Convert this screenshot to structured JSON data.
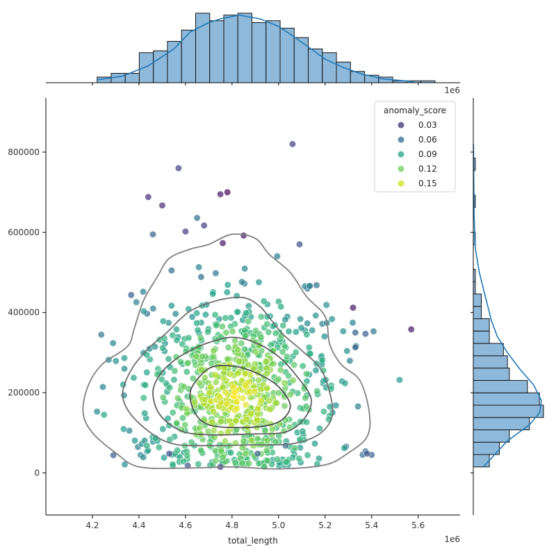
{
  "chart_data": {
    "type": "scatter",
    "title": "",
    "xlabel": "total_length",
    "ylabel": "",
    "x_offset_label": "1e6",
    "marg_offset_label": "1e6",
    "xlim": [
      4.0,
      5.78
    ],
    "ylim": [
      -105000,
      935000
    ],
    "x_unit": 1000000,
    "xticks": [
      4.2,
      4.4,
      4.6,
      4.8,
      5.0,
      5.2,
      5.4,
      5.6
    ],
    "yticks": [
      0,
      200000,
      400000,
      600000,
      800000
    ],
    "grid": false,
    "legend": {
      "title": "anomaly_score",
      "placement": "top-right",
      "entries": [
        {
          "label": "0.03",
          "color": "#3e2f73"
        },
        {
          "label": "0.06",
          "color": "#31698e"
        },
        {
          "label": "0.09",
          "color": "#21a386"
        },
        {
          "label": "0.12",
          "color": "#6ccd5a"
        },
        {
          "label": "0.15",
          "color": "#d2e21b"
        }
      ]
    },
    "colormap": "viridis",
    "score_range": [
      0.0,
      0.17
    ],
    "point_alpha": 0.7,
    "notable_points": [
      {
        "x": 5.06,
        "y": 820000,
        "score": 0.03
      },
      {
        "x": 4.57,
        "y": 760000,
        "score": 0.03
      },
      {
        "x": 4.78,
        "y": 700000,
        "score": 0.0
      },
      {
        "x": 4.75,
        "y": 695000,
        "score": 0.01
      },
      {
        "x": 4.44,
        "y": 688000,
        "score": 0.02
      },
      {
        "x": 4.5,
        "y": 667000,
        "score": 0.02
      },
      {
        "x": 4.65,
        "y": 636000,
        "score": 0.06
      },
      {
        "x": 4.68,
        "y": 617000,
        "score": 0.03
      },
      {
        "x": 4.6,
        "y": 602000,
        "score": 0.03
      },
      {
        "x": 4.46,
        "y": 595000,
        "score": 0.05
      },
      {
        "x": 4.85,
        "y": 592000,
        "score": 0.01
      },
      {
        "x": 5.09,
        "y": 570000,
        "score": 0.04
      },
      {
        "x": 4.76,
        "y": 573000,
        "score": 0.01
      },
      {
        "x": 5.32,
        "y": 412000,
        "score": 0.01
      },
      {
        "x": 5.57,
        "y": 358000,
        "score": 0.01
      },
      {
        "x": 5.52,
        "y": 232000,
        "score": 0.09
      },
      {
        "x": 5.33,
        "y": 313000,
        "score": 0.05
      },
      {
        "x": 5.33,
        "y": 350000,
        "score": 0.05
      },
      {
        "x": 4.22,
        "y": 153000,
        "score": 0.08
      },
      {
        "x": 4.29,
        "y": 44000,
        "score": 0.05
      },
      {
        "x": 4.75,
        "y": 15000,
        "score": 0.03
      },
      {
        "x": 4.61,
        "y": 18000,
        "score": 0.04
      },
      {
        "x": 5.4,
        "y": 45000,
        "score": 0.05
      },
      {
        "x": 5.38,
        "y": 48000,
        "score": 0.04
      },
      {
        "x": 4.27,
        "y": 282000,
        "score": 0.08
      },
      {
        "x": 4.25,
        "y": 145000,
        "score": 0.1
      },
      {
        "x": 4.53,
        "y": 48000,
        "score": 0.04
      },
      {
        "x": 4.91,
        "y": 48000,
        "score": 0.05
      },
      {
        "x": 5.03,
        "y": 68000,
        "score": 0.06
      }
    ],
    "contour_levels": [
      [
        [
          4.16,
          150000
        ],
        [
          4.2,
          100000
        ],
        [
          4.3,
          50000
        ],
        [
          4.4,
          15000
        ],
        [
          4.6,
          12000
        ],
        [
          4.8,
          15000
        ],
        [
          5.0,
          10000
        ],
        [
          5.2,
          20000
        ],
        [
          5.3,
          50000
        ],
        [
          5.38,
          90000
        ],
        [
          5.39,
          150000
        ],
        [
          5.35,
          230000
        ],
        [
          5.27,
          270000
        ],
        [
          5.22,
          320000
        ],
        [
          5.2,
          390000
        ],
        [
          5.12,
          440000
        ],
        [
          5.05,
          500000
        ],
        [
          4.96,
          545000
        ],
        [
          4.9,
          585000
        ],
        [
          4.8,
          595000
        ],
        [
          4.7,
          570000
        ],
        [
          4.62,
          558000
        ],
        [
          4.53,
          535000
        ],
        [
          4.48,
          490000
        ],
        [
          4.42,
          430000
        ],
        [
          4.38,
          360000
        ],
        [
          4.35,
          315000
        ],
        [
          4.24,
          270000
        ],
        [
          4.18,
          215000
        ]
      ],
      [
        [
          4.33,
          200000
        ],
        [
          4.36,
          150000
        ],
        [
          4.45,
          100000
        ],
        [
          4.55,
          72000
        ],
        [
          4.7,
          68000
        ],
        [
          4.88,
          70000
        ],
        [
          5.05,
          72000
        ],
        [
          5.17,
          95000
        ],
        [
          5.23,
          140000
        ],
        [
          5.22,
          200000
        ],
        [
          5.18,
          260000
        ],
        [
          5.1,
          305000
        ],
        [
          5.02,
          345000
        ],
        [
          4.97,
          380000
        ],
        [
          4.92,
          415000
        ],
        [
          4.85,
          437000
        ],
        [
          4.75,
          432000
        ],
        [
          4.64,
          410000
        ],
        [
          4.58,
          385000
        ],
        [
          4.52,
          350000
        ],
        [
          4.44,
          310000
        ],
        [
          4.37,
          260000
        ]
      ],
      [
        [
          4.46,
          200000
        ],
        [
          4.49,
          145000
        ],
        [
          4.58,
          105000
        ],
        [
          4.7,
          95000
        ],
        [
          4.88,
          97000
        ],
        [
          5.03,
          102000
        ],
        [
          5.11,
          135000
        ],
        [
          5.14,
          185000
        ],
        [
          5.08,
          240000
        ],
        [
          5.0,
          290000
        ],
        [
          4.9,
          325000
        ],
        [
          4.8,
          338000
        ],
        [
          4.7,
          325000
        ],
        [
          4.62,
          305000
        ],
        [
          4.55,
          280000
        ],
        [
          4.49,
          245000
        ]
      ],
      [
        [
          4.62,
          200000
        ],
        [
          4.64,
          150000
        ],
        [
          4.7,
          120000
        ],
        [
          4.82,
          113000
        ],
        [
          4.95,
          118000
        ],
        [
          5.02,
          135000
        ],
        [
          5.05,
          170000
        ],
        [
          5.0,
          215000
        ],
        [
          4.92,
          245000
        ],
        [
          4.82,
          265000
        ],
        [
          4.72,
          265000
        ],
        [
          4.66,
          240000
        ]
      ]
    ],
    "x_marginal": {
      "bin_edges_start": 4.22,
      "bin_width": 0.0605,
      "counts": [
        3,
        5,
        5,
        16,
        17,
        22,
        28,
        37,
        33,
        36,
        37,
        32,
        33,
        29,
        24,
        18,
        16,
        11,
        6,
        4,
        3,
        1,
        1,
        1
      ],
      "kde": [
        [
          4.22,
          1.5
        ],
        [
          4.33,
          3.5
        ],
        [
          4.44,
          9
        ],
        [
          4.55,
          18
        ],
        [
          4.62,
          27
        ],
        [
          4.7,
          32
        ],
        [
          4.75,
          34
        ],
        [
          4.83,
          36
        ],
        [
          4.92,
          34
        ],
        [
          5.0,
          30
        ],
        [
          5.06,
          25
        ],
        [
          5.14,
          18
        ],
        [
          5.2,
          12.5
        ],
        [
          5.28,
          8
        ],
        [
          5.36,
          4.5
        ],
        [
          5.45,
          2
        ],
        [
          5.58,
          0.5
        ]
      ]
    },
    "y_marginal": {
      "bin_edges_start": 15000,
      "bin_width": 30800,
      "counts": [
        8,
        13,
        18,
        28,
        35,
        33,
        27,
        18,
        17,
        15,
        8,
        8,
        4,
        4,
        1,
        1,
        0,
        0,
        1,
        0,
        0,
        1,
        0,
        0,
        1,
        0,
        0
      ],
      "kde": [
        [
          15000,
          5
        ],
        [
          80000,
          17
        ],
        [
          120000,
          28
        ],
        [
          150000,
          33
        ],
        [
          180000,
          34
        ],
        [
          220000,
          30
        ],
        [
          260000,
          23
        ],
        [
          300000,
          17
        ],
        [
          340000,
          12
        ],
        [
          380000,
          9
        ],
        [
          420000,
          7
        ],
        [
          460000,
          5
        ],
        [
          500000,
          3
        ],
        [
          560000,
          1
        ],
        [
          640000,
          0.4
        ],
        [
          750000,
          0.2
        ],
        [
          820000,
          0.1
        ]
      ]
    }
  }
}
